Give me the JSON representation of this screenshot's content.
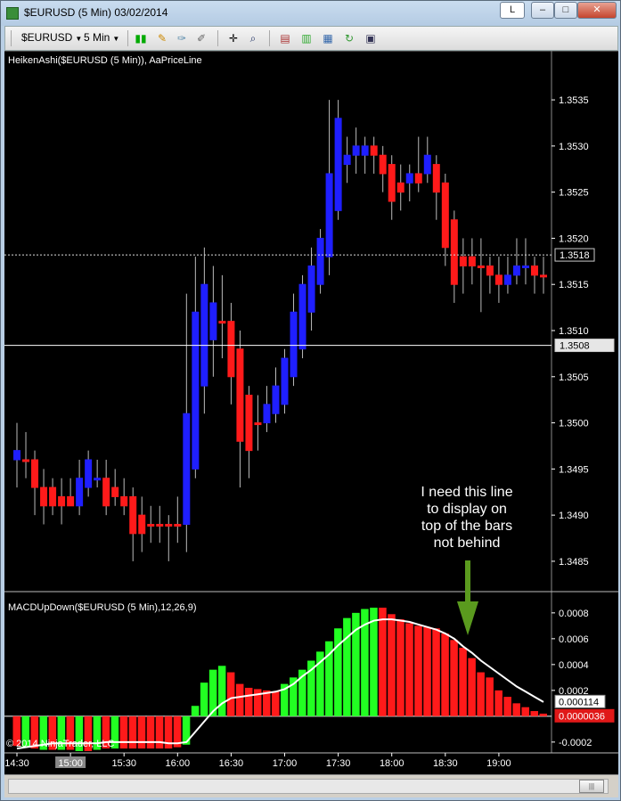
{
  "window": {
    "title": "$EURUSD (5 Min)  03/02/2014",
    "help_button": "L",
    "minimize_glyph": "–",
    "maximize_glyph": "□",
    "close_glyph": "✕"
  },
  "toolbar": {
    "instrument": "$EURUSD",
    "interval": "5 Min"
  },
  "price_panel": {
    "label": "HeikenAshi($EURUSD (5 Min)), AaPriceLine",
    "y_ticks": [
      "1.3535",
      "1.3530",
      "1.3525",
      "1.3520",
      "1.3515",
      "1.3510",
      "1.3505",
      "1.3500",
      "1.3495",
      "1.3490",
      "1.3485"
    ],
    "last_price_marker": "1.3518",
    "line_marker": "1.3508"
  },
  "macd_panel": {
    "label": "MACDUpDown($EURUSD (5 Min),12,26,9)",
    "y_ticks": [
      "0.0008",
      "0.0006",
      "0.0004",
      "0.0002",
      "-0.0002"
    ],
    "avg_marker": "0.000114",
    "value_marker": "0.0000036",
    "copyright": "© 2014 NinjaTrader, LLC"
  },
  "time_axis": {
    "ticks": [
      "14:30",
      "15:00",
      "15:30",
      "16:00",
      "16:30",
      "17:00",
      "17:30",
      "18:00",
      "18:30",
      "19:00"
    ]
  },
  "annotation": {
    "lines": [
      "I need this line",
      "to display on",
      "top of the bars",
      "not behind"
    ]
  },
  "colors": {
    "up_candle": "#1f1fff",
    "down_candle": "#ff1a1a",
    "hist_up": "#22ff22",
    "hist_down": "#ff1a1a",
    "arrow": "#5a9a1e"
  },
  "chart_data": {
    "type": "candlestick",
    "candles": [
      {
        "t": "14:30",
        "o": 1.3497,
        "c": 1.3496,
        "h": 1.35,
        "l": 1.3493,
        "dir": "up"
      },
      {
        "t": "14:35",
        "o": 1.3496,
        "c": 1.3496,
        "h": 1.3499,
        "l": 1.3494,
        "dir": "down"
      },
      {
        "t": "14:40",
        "o": 1.3496,
        "c": 1.3493,
        "h": 1.3497,
        "l": 1.349,
        "dir": "down"
      },
      {
        "t": "14:45",
        "o": 1.3493,
        "c": 1.3491,
        "h": 1.3495,
        "l": 1.3489,
        "dir": "down"
      },
      {
        "t": "14:50",
        "o": 1.3493,
        "c": 1.3491,
        "h": 1.3494,
        "l": 1.349,
        "dir": "down"
      },
      {
        "t": "14:55",
        "o": 1.3492,
        "c": 1.3491,
        "h": 1.3494,
        "l": 1.3489,
        "dir": "down"
      },
      {
        "t": "15:00",
        "o": 1.3491,
        "c": 1.3492,
        "h": 1.3494,
        "l": 1.3491,
        "dir": "down"
      },
      {
        "t": "15:05",
        "o": 1.3491,
        "c": 1.3494,
        "h": 1.3496,
        "l": 1.349,
        "dir": "up"
      },
      {
        "t": "15:10",
        "o": 1.3493,
        "c": 1.3496,
        "h": 1.3497,
        "l": 1.3492,
        "dir": "up"
      },
      {
        "t": "15:15",
        "o": 1.3494,
        "c": 1.3494,
        "h": 1.3496,
        "l": 1.3493,
        "dir": "up"
      },
      {
        "t": "15:20",
        "o": 1.3494,
        "c": 1.3491,
        "h": 1.3496,
        "l": 1.349,
        "dir": "down"
      },
      {
        "t": "15:25",
        "o": 1.3492,
        "c": 1.3493,
        "h": 1.3495,
        "l": 1.3491,
        "dir": "down"
      },
      {
        "t": "15:30",
        "o": 1.3492,
        "c": 1.3491,
        "h": 1.3494,
        "l": 1.349,
        "dir": "down"
      },
      {
        "t": "15:35",
        "o": 1.3492,
        "c": 1.3488,
        "h": 1.3493,
        "l": 1.3485,
        "dir": "down"
      },
      {
        "t": "15:40",
        "o": 1.349,
        "c": 1.3488,
        "h": 1.3492,
        "l": 1.3486,
        "dir": "down"
      },
      {
        "t": "15:45",
        "o": 1.3489,
        "c": 1.3489,
        "h": 1.3491,
        "l": 1.3487,
        "dir": "down"
      },
      {
        "t": "15:50",
        "o": 1.3489,
        "c": 1.3489,
        "h": 1.3491,
        "l": 1.3487,
        "dir": "down"
      },
      {
        "t": "15:55",
        "o": 1.3489,
        "c": 1.3489,
        "h": 1.349,
        "l": 1.3485,
        "dir": "down"
      },
      {
        "t": "16:00",
        "o": 1.3489,
        "c": 1.3489,
        "h": 1.3492,
        "l": 1.3487,
        "dir": "down"
      },
      {
        "t": "16:05",
        "o": 1.3489,
        "c": 1.3501,
        "h": 1.3514,
        "l": 1.3486,
        "dir": "up"
      },
      {
        "t": "16:10",
        "o": 1.3495,
        "c": 1.3512,
        "h": 1.3518,
        "l": 1.3494,
        "dir": "up"
      },
      {
        "t": "16:15",
        "o": 1.3504,
        "c": 1.3515,
        "h": 1.3519,
        "l": 1.3501,
        "dir": "up"
      },
      {
        "t": "16:20",
        "o": 1.3509,
        "c": 1.3513,
        "h": 1.3517,
        "l": 1.3505,
        "dir": "up"
      },
      {
        "t": "16:25",
        "o": 1.3511,
        "c": 1.3511,
        "h": 1.3516,
        "l": 1.3507,
        "dir": "down"
      },
      {
        "t": "16:30",
        "o": 1.3511,
        "c": 1.3505,
        "h": 1.3513,
        "l": 1.3502,
        "dir": "down"
      },
      {
        "t": "16:35",
        "o": 1.3508,
        "c": 1.3498,
        "h": 1.351,
        "l": 1.3493,
        "dir": "down"
      },
      {
        "t": "16:40",
        "o": 1.3503,
        "c": 1.3497,
        "h": 1.3504,
        "l": 1.3494,
        "dir": "down"
      },
      {
        "t": "16:45",
        "o": 1.35,
        "c": 1.35,
        "h": 1.3503,
        "l": 1.3497,
        "dir": "down"
      },
      {
        "t": "16:50",
        "o": 1.35,
        "c": 1.3502,
        "h": 1.3504,
        "l": 1.3499,
        "dir": "up"
      },
      {
        "t": "16:55",
        "o": 1.3501,
        "c": 1.3504,
        "h": 1.3506,
        "l": 1.35,
        "dir": "up"
      },
      {
        "t": "17:00",
        "o": 1.3502,
        "c": 1.3507,
        "h": 1.3508,
        "l": 1.3501,
        "dir": "up"
      },
      {
        "t": "17:05",
        "o": 1.3505,
        "c": 1.3512,
        "h": 1.3514,
        "l": 1.3504,
        "dir": "up"
      },
      {
        "t": "17:10",
        "o": 1.3508,
        "c": 1.3515,
        "h": 1.3516,
        "l": 1.3507,
        "dir": "up"
      },
      {
        "t": "17:15",
        "o": 1.3512,
        "c": 1.3517,
        "h": 1.3519,
        "l": 1.351,
        "dir": "up"
      },
      {
        "t": "17:20",
        "o": 1.3515,
        "c": 1.352,
        "h": 1.3521,
        "l": 1.3514,
        "dir": "up"
      },
      {
        "t": "17:25",
        "o": 1.3518,
        "c": 1.3527,
        "h": 1.3535,
        "l": 1.3516,
        "dir": "up"
      },
      {
        "t": "17:30",
        "o": 1.3523,
        "c": 1.3533,
        "h": 1.3535,
        "l": 1.3522,
        "dir": "up"
      },
      {
        "t": "17:35",
        "o": 1.3528,
        "c": 1.3529,
        "h": 1.3531,
        "l": 1.3526,
        "dir": "up"
      },
      {
        "t": "17:40",
        "o": 1.3529,
        "c": 1.353,
        "h": 1.3532,
        "l": 1.3527,
        "dir": "up"
      },
      {
        "t": "17:45",
        "o": 1.3529,
        "c": 1.353,
        "h": 1.3531,
        "l": 1.3527,
        "dir": "up"
      },
      {
        "t": "17:50",
        "o": 1.353,
        "c": 1.3529,
        "h": 1.3531,
        "l": 1.3527,
        "dir": "down"
      },
      {
        "t": "17:55",
        "o": 1.3529,
        "c": 1.3527,
        "h": 1.353,
        "l": 1.3525,
        "dir": "down"
      },
      {
        "t": "18:00",
        "o": 1.3528,
        "c": 1.3524,
        "h": 1.3529,
        "l": 1.3522,
        "dir": "down"
      },
      {
        "t": "18:05",
        "o": 1.3526,
        "c": 1.3525,
        "h": 1.3528,
        "l": 1.3523,
        "dir": "down"
      },
      {
        "t": "18:10",
        "o": 1.3526,
        "c": 1.3527,
        "h": 1.3528,
        "l": 1.3524,
        "dir": "up"
      },
      {
        "t": "18:15",
        "o": 1.3527,
        "c": 1.3526,
        "h": 1.3531,
        "l": 1.3525,
        "dir": "down"
      },
      {
        "t": "18:20",
        "o": 1.3527,
        "c": 1.3529,
        "h": 1.3531,
        "l": 1.3526,
        "dir": "up"
      },
      {
        "t": "18:25",
        "o": 1.3528,
        "c": 1.3525,
        "h": 1.3529,
        "l": 1.3522,
        "dir": "down"
      },
      {
        "t": "18:30",
        "o": 1.3526,
        "c": 1.3519,
        "h": 1.3527,
        "l": 1.3517,
        "dir": "down"
      },
      {
        "t": "18:35",
        "o": 1.3522,
        "c": 1.3515,
        "h": 1.3523,
        "l": 1.3513,
        "dir": "down"
      },
      {
        "t": "18:40",
        "o": 1.3518,
        "c": 1.3517,
        "h": 1.352,
        "l": 1.3514,
        "dir": "down"
      },
      {
        "t": "18:45",
        "o": 1.3518,
        "c": 1.3517,
        "h": 1.352,
        "l": 1.3515,
        "dir": "down"
      },
      {
        "t": "18:50",
        "o": 1.3517,
        "c": 1.3517,
        "h": 1.352,
        "l": 1.3512,
        "dir": "down"
      },
      {
        "t": "18:55",
        "o": 1.3517,
        "c": 1.3516,
        "h": 1.3518,
        "l": 1.3514,
        "dir": "down"
      },
      {
        "t": "19:00",
        "o": 1.3516,
        "c": 1.3515,
        "h": 1.3518,
        "l": 1.3513,
        "dir": "down"
      },
      {
        "t": "19:05",
        "o": 1.3515,
        "c": 1.3516,
        "h": 1.3518,
        "l": 1.3514,
        "dir": "up"
      },
      {
        "t": "19:10",
        "o": 1.3516,
        "c": 1.3517,
        "h": 1.352,
        "l": 1.3515,
        "dir": "up"
      },
      {
        "t": "19:15",
        "o": 1.3517,
        "c": 1.3517,
        "h": 1.352,
        "l": 1.3515,
        "dir": "up"
      },
      {
        "t": "19:20",
        "o": 1.3517,
        "c": 1.3516,
        "h": 1.3518,
        "l": 1.3514,
        "dir": "down"
      },
      {
        "t": "19:25",
        "o": 1.3516,
        "c": 1.3516,
        "h": 1.3518,
        "l": 1.3514,
        "dir": "down"
      }
    ],
    "price_ylim": [
      1.3482,
      1.3538
    ],
    "price_line": 1.35084,
    "last_price_line": 1.35182,
    "macd": {
      "ylim": [
        -0.00027,
        0.00093
      ],
      "hist": [
        -0.00023,
        -0.00024,
        -0.00025,
        -0.00026,
        -0.00026,
        -0.00026,
        -0.00026,
        -0.00027,
        -0.00027,
        -0.00026,
        -0.00025,
        -0.00025,
        -0.00025,
        -0.00025,
        -0.00025,
        -0.00025,
        -0.00025,
        -0.00025,
        -0.00024,
        -0.00022,
        8e-05,
        0.00026,
        0.00036,
        0.00039,
        0.00034,
        0.00025,
        0.00022,
        0.00021,
        0.0002,
        0.00019,
        0.00025,
        0.0003,
        0.00036,
        0.00043,
        0.0005,
        0.00058,
        0.00068,
        0.00076,
        0.0008,
        0.00083,
        0.00084,
        0.00084,
        0.00079,
        0.00075,
        0.00072,
        0.0007,
        0.00069,
        0.00068,
        0.00064,
        0.00059,
        0.00053,
        0.00045,
        0.00034,
        0.0003,
        0.0002,
        0.00015,
        0.0001,
        7e-05,
        4e-05,
        2e-05
      ],
      "hist_dir": [
        "down",
        "up",
        "down",
        "up",
        "down",
        "up",
        "down",
        "up",
        "down",
        "up",
        "down",
        "up",
        "down",
        "down",
        "down",
        "down",
        "down",
        "down",
        "down",
        "up",
        "up",
        "up",
        "up",
        "up",
        "down",
        "down",
        "down",
        "down",
        "down",
        "down",
        "up",
        "up",
        "up",
        "up",
        "up",
        "up",
        "up",
        "up",
        "up",
        "up",
        "up",
        "down",
        "down",
        "down",
        "down",
        "down",
        "down",
        "down",
        "down",
        "down",
        "down",
        "down",
        "down",
        "down",
        "down",
        "down",
        "down",
        "down",
        "down",
        "down"
      ],
      "avg": [
        -0.00025,
        -0.00024,
        -0.00023,
        -0.00022,
        -0.00021,
        -0.00021,
        -0.00021,
        -0.00021,
        -0.00021,
        -0.00021,
        -0.0002,
        -0.0002,
        -0.0002,
        -0.0002,
        -0.0002,
        -0.0002,
        -0.0002,
        -0.00021,
        -0.00021,
        -0.0002,
        -0.00012,
        -4e-05,
        4e-05,
        0.0001,
        0.00014,
        0.00015,
        0.00016,
        0.00017,
        0.00018,
        0.00019,
        0.00021,
        0.00025,
        0.00031,
        0.00036,
        0.00042,
        0.00048,
        0.00055,
        0.00061,
        0.00067,
        0.00071,
        0.00074,
        0.00075,
        0.00075,
        0.00074,
        0.00073,
        0.00071,
        0.00069,
        0.00067,
        0.00064,
        0.0006,
        0.00054,
        0.00049,
        0.00043,
        0.00038,
        0.00033,
        0.00028,
        0.00023,
        0.00019,
        0.00015,
        0.00011
      ]
    }
  }
}
